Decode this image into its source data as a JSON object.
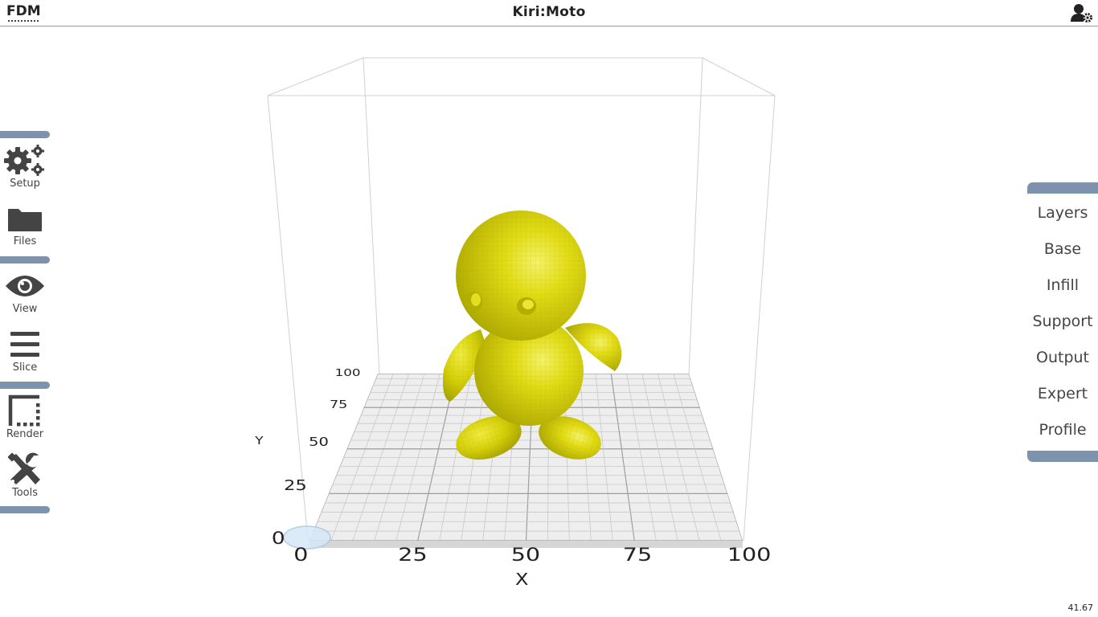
{
  "app": {
    "mode": "FDM",
    "title": "Kiri:Moto"
  },
  "left_toolbar": {
    "items": [
      {
        "label": "Setup",
        "icon": "gears-icon"
      },
      {
        "label": "Files",
        "icon": "folder-icon"
      },
      {
        "label": "View",
        "icon": "eye-icon"
      },
      {
        "label": "Slice",
        "icon": "bars-icon"
      },
      {
        "label": "Render",
        "icon": "border-style-icon"
      },
      {
        "label": "Tools",
        "icon": "tools-icon"
      }
    ]
  },
  "right_panel": {
    "items": [
      "Layers",
      "Base",
      "Infill",
      "Support",
      "Output",
      "Expert",
      "Profile"
    ]
  },
  "platform": {
    "x_axis_label": "X",
    "y_axis_label": "Y",
    "x_ticks": [
      "0",
      "25",
      "50",
      "75",
      "100"
    ],
    "y_ticks": [
      "0",
      "25",
      "50",
      "75",
      "100"
    ]
  },
  "model": {
    "color": "#d9d400"
  },
  "status": {
    "fps": "41.67"
  },
  "colors": {
    "separator": "#7d92ad",
    "icon": "#444444",
    "model": "#d9d400"
  }
}
